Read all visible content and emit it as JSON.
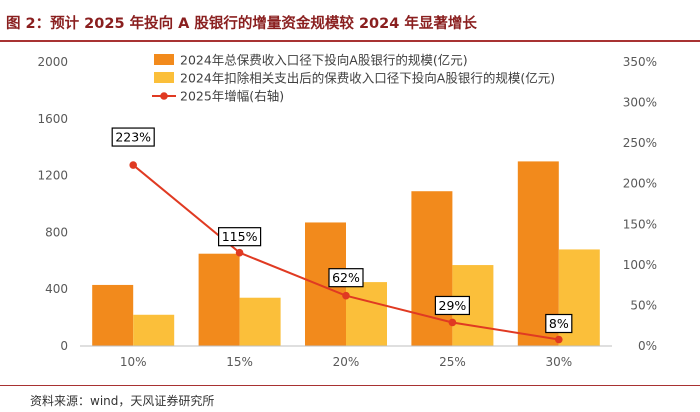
{
  "page_title": "图 2：预计 2025 年投向 A 股银行的增量资金规模较 2024 年显著增长",
  "source": "资料来源：wind，天风证券研究所",
  "colors": {
    "series1": "#f28a1c",
    "series2": "#fbbf3a",
    "line": "#e03a22",
    "title": "#8a1f1f",
    "rule": "#a83232",
    "axis": "#595959"
  },
  "chart_data": {
    "type": "bar",
    "title": "预计 2025 年投向 A 股银行的增量资金规模较 2024 年显著增长",
    "categories": [
      "10%",
      "15%",
      "20%",
      "25%",
      "30%"
    ],
    "series": [
      {
        "name": "2024年总保费收入口径下投向A股银行的规模(亿元)",
        "type": "bar",
        "axis": "left",
        "values": [
          430,
          650,
          870,
          1090,
          1300
        ]
      },
      {
        "name": "2024年扣除相关支出后的保费收入口径下投向A股银行的规模(亿元)",
        "type": "bar",
        "axis": "left",
        "values": [
          220,
          340,
          450,
          570,
          680
        ]
      },
      {
        "name": "2025年增幅(右轴)",
        "type": "line",
        "axis": "right",
        "values": [
          223,
          115,
          62,
          29,
          8
        ],
        "labels": [
          "223%",
          "115%",
          "62%",
          "29%",
          "8%"
        ]
      }
    ],
    "left_axis": {
      "min": 0,
      "max": 2000,
      "ticks": [
        0,
        400,
        800,
        1200,
        1600,
        2000
      ],
      "tick_labels": [
        "0",
        "400",
        "800",
        "1200",
        "1600",
        "2000"
      ]
    },
    "right_axis": {
      "min": 0,
      "max": 350,
      "ticks": [
        0,
        50,
        100,
        150,
        200,
        250,
        300,
        350
      ],
      "tick_labels": [
        "0%",
        "50%",
        "100%",
        "150%",
        "200%",
        "250%",
        "300%",
        "350%"
      ]
    },
    "legend_position": "top-center",
    "grid": false
  }
}
